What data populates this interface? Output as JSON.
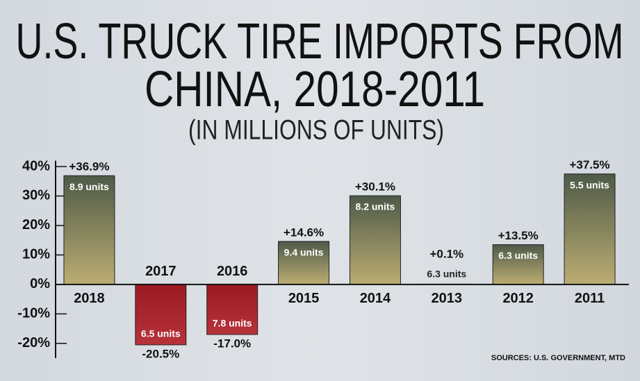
{
  "chart_data": {
    "type": "bar",
    "title": [
      "U.S. TRUCK TIRE IMPORTS FROM",
      "CHINA, 2018-2011"
    ],
    "subtitle": "(IN MILLIONS OF UNITS)",
    "source": "SOURCES: U.S. GOVERNMENT, MTD",
    "categories": [
      "2018",
      "2017",
      "2016",
      "2015",
      "2014",
      "2013",
      "2012",
      "2011"
    ],
    "values": [
      36.9,
      -20.5,
      -17.0,
      14.6,
      30.1,
      0.1,
      13.5,
      37.5
    ],
    "value_labels": [
      "+36.9%",
      "-20.5%",
      "-17.0%",
      "+14.6%",
      "+30.1%",
      "+0.1%",
      "+13.5%",
      "+37.5%"
    ],
    "unit_labels": [
      "8.9 units",
      "6.5 units",
      "7.8 units",
      "9.4 units",
      "8.2 units",
      "6.3 units",
      "6.3 units",
      "5.5 units"
    ],
    "color": "#4e5a48",
    "negative_color": "#9a1a22",
    "ylim": [
      -25,
      42
    ],
    "yticks": [
      {
        "value": 40,
        "label": "40%"
      },
      {
        "value": 30,
        "label": "30%"
      },
      {
        "value": 20,
        "label": "20%"
      },
      {
        "value": 10,
        "label": "10%"
      },
      {
        "value": 0,
        "label": "0%"
      },
      {
        "value": -10,
        "label": "-10%"
      },
      {
        "value": -20,
        "label": "-20%"
      }
    ]
  }
}
